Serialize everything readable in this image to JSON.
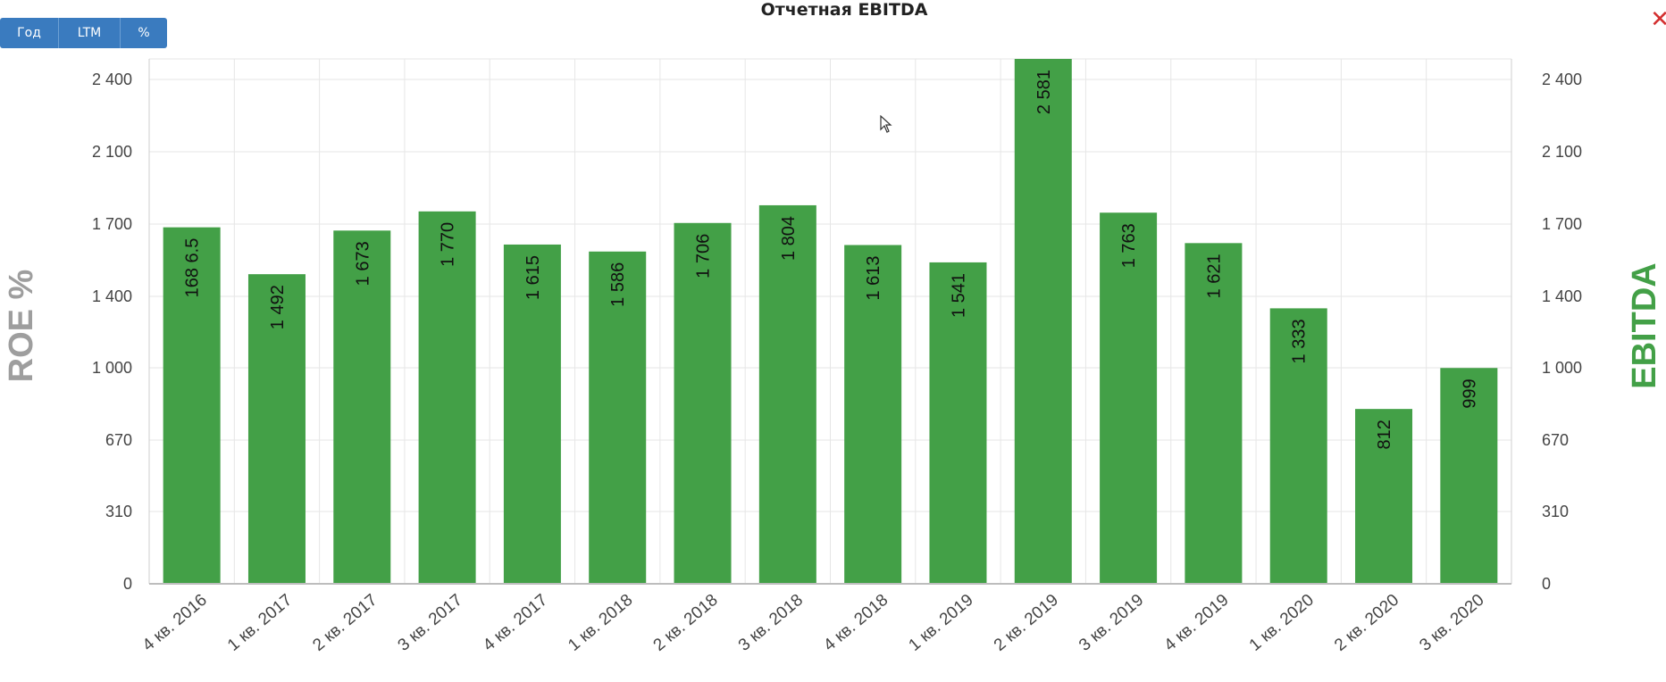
{
  "title": "Отчетная EBITDA",
  "buttons": [
    {
      "label": "Год"
    },
    {
      "label": "LTM"
    },
    {
      "label": "%"
    }
  ],
  "close_icon": "close-icon",
  "colors": {
    "bar": "#43a047",
    "left_axis_title": "#9e9e9e",
    "right_axis_title": "#43a047",
    "button": "#3a7bbf"
  },
  "chart_data": {
    "type": "bar",
    "title": "Отчетная EBITDA",
    "categories": [
      "4 кв. 2016",
      "1 кв. 2017",
      "2 кв. 2017",
      "3 кв. 2017",
      "4 кв. 2017",
      "1 кв. 2018",
      "2 кв. 2018",
      "3 кв. 2018",
      "4 кв. 2018",
      "1 кв. 2019",
      "2 кв. 2019",
      "3 кв. 2019",
      "4 кв. 2019",
      "1 кв. 2020",
      "2 кв. 2020",
      "3 кв. 2020"
    ],
    "values": [
      1686.5,
      1492,
      1673,
      1770,
      1615,
      1586,
      1706,
      1804,
      1613,
      1541,
      2581,
      1763,
      1621,
      1333,
      812,
      999
    ],
    "data_labels": [
      "168 6.5",
      "1 492",
      "1 673",
      "1 770",
      "1 615",
      "1 586",
      "1 706",
      "1 804",
      "1 613",
      "1 541",
      "2 581",
      "1 763",
      "1 621",
      "1 333",
      "812",
      "999"
    ],
    "y_tick_labels": [
      "0",
      "310",
      "670",
      "1 000",
      "1 400",
      "1 700",
      "2 100",
      "2 400"
    ],
    "ylabel_left": "ROE %",
    "ylabel_right": "EBITDA",
    "grid": true
  }
}
